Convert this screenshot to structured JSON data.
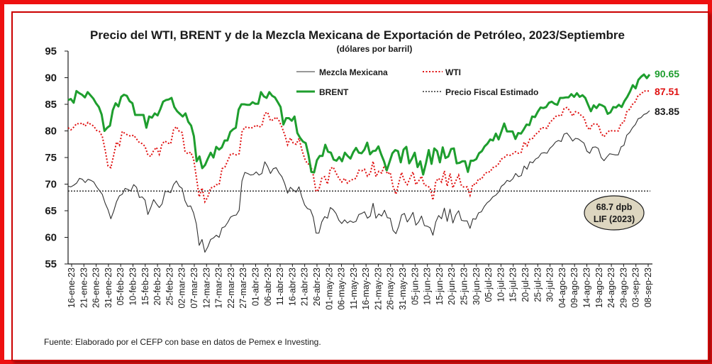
{
  "chart_data": {
    "type": "line",
    "title": "Precio del WTI, BRENT y de la Mezcla Mexicana de Exportación de Petróleo, 2023/Septiembre",
    "subtitle": "(dólares por barril)",
    "source": "Fuente: Elaborado por el CEFP con base en datos de Pemex e Investing.",
    "ylim": [
      55,
      95
    ],
    "yticks": [
      55,
      60,
      65,
      70,
      75,
      80,
      85,
      90,
      95
    ],
    "grid": false,
    "legend_position": "top-center",
    "x_labels": [
      "16-ene-23",
      "21-ene-23",
      "26-ene-23",
      "31-ene-23",
      "05-feb-23",
      "10-feb-23",
      "15-feb-23",
      "20-feb-23",
      "25-feb-23",
      "02-mar-23",
      "07-mar-23",
      "12-mar-23",
      "17-mar-23",
      "22-mar-23",
      "27-mar-23",
      "01-abr-23",
      "06-abr-23",
      "11-abr-23",
      "16-abr-23",
      "21-abr-23",
      "26-abr-23",
      "01-may-23",
      "06-may-23",
      "11-may-23",
      "16-may-23",
      "21-may-23",
      "26-may-23",
      "31-may-23",
      "05-jun-23",
      "10-jun-23",
      "15-jun-23",
      "20-jun-23",
      "25-jun-23",
      "30-jun-23",
      "05-jul-23",
      "10-jul-23",
      "15-jul-23",
      "20-jul-23",
      "25-jul-23",
      "30-jul-23",
      "04-ago-23",
      "09-ago-23",
      "14-ago-23",
      "19-ago-23",
      "24-ago-23",
      "29-ago-23",
      "03-sep-23",
      "08-sep-23"
    ],
    "series": [
      {
        "name": "BRENT",
        "color": "#1e9e2e",
        "style": "solid-thick",
        "end_label": "90.65",
        "values": [
          85.8,
          86.0,
          85.3,
          87.5,
          87.1,
          86.8,
          86.3,
          87.3,
          86.7,
          86.1,
          85.2,
          84.5,
          83.1,
          80.0,
          80.6,
          81.0,
          83.9,
          85.2,
          84.6,
          86.4,
          86.8,
          86.6,
          85.6,
          85.2,
          83.0,
          83.0,
          83.0,
          83.0,
          80.6,
          82.7,
          82.5,
          83.3,
          82.9,
          84.1,
          85.5,
          85.8,
          85.9,
          86.2,
          84.5,
          83.7,
          83.2,
          82.7,
          83.3,
          81.7,
          81.0,
          79.0,
          74.3,
          75.2,
          73.0,
          73.6,
          74.8,
          75.9,
          75.0,
          77.0,
          76.5,
          76.9,
          78.2,
          78.2,
          79.8,
          80.3,
          80.6,
          84.0,
          85.0,
          85.0,
          84.9,
          84.9,
          85.4,
          85.1,
          85.1,
          87.3,
          86.5,
          86.2,
          87.3,
          86.6,
          86.3,
          85.4,
          84.5,
          81.2,
          82.4,
          82.4,
          81.9,
          82.7,
          79.6,
          78.7,
          78.0,
          77.7,
          75.5,
          72.3,
          72.2,
          74.5,
          75.3,
          75.3,
          77.4,
          76.1,
          75.9,
          74.6,
          74.4,
          75.1,
          74.3,
          75.9,
          75.3,
          74.8,
          76.0,
          76.8,
          75.9,
          75.8,
          76.5,
          77.8,
          75.6,
          76.2,
          76.3,
          77.1,
          75.6,
          74.3,
          72.6,
          74.2,
          75.8,
          76.4,
          76.2,
          74.1,
          76.5,
          77.0,
          73.9,
          74.8,
          75.9,
          73.2,
          74.3,
          71.8,
          73.9,
          76.4,
          73.8,
          76.7,
          76.2,
          74.1,
          76.9,
          74.9,
          75.2,
          76.6,
          76.7,
          73.9,
          74.0,
          74.3,
          74.3,
          72.3,
          74.4,
          74.4,
          74.7,
          75.8,
          76.2,
          77.1,
          77.6,
          78.4,
          78.2,
          79.5,
          78.4,
          79.9,
          81.4,
          79.9,
          79.9,
          79.9,
          78.5,
          79.6,
          79.5,
          80.3,
          81.2,
          81.1,
          82.7,
          82.6,
          83.6,
          84.4,
          84.3,
          84.5,
          85.3,
          85.5,
          85.1,
          84.9,
          86.2,
          86.2,
          86.3,
          86.3,
          86.9,
          86.4,
          87.1,
          86.4,
          86.7,
          86.2,
          84.9,
          83.7,
          84.8,
          84.3,
          85.0,
          84.8,
          84.5,
          83.2,
          83.5,
          84.5,
          84.4,
          84.9,
          84.5,
          85.6,
          86.4,
          87.4,
          88.6,
          88.0,
          89.6,
          90.2,
          90.6,
          89.9,
          90.6
        ]
      },
      {
        "name": "WTI",
        "color": "#e01010",
        "style": "dotted",
        "end_label": "87.51",
        "values": [
          80.6,
          80.2,
          80.7,
          81.4,
          81.3,
          81.5,
          80.9,
          81.6,
          81.2,
          80.9,
          80.1,
          79.9,
          79.0,
          76.4,
          73.4,
          73.1,
          75.4,
          77.9,
          77.3,
          79.9,
          79.5,
          79.2,
          79.0,
          79.2,
          78.5,
          77.8,
          77.6,
          77.1,
          75.5,
          75.2,
          76.3,
          76.9,
          75.6,
          77.6,
          78.1,
          77.7,
          77.6,
          80.2,
          80.8,
          79.9,
          79.7,
          76.2,
          75.7,
          76.0,
          74.8,
          71.3,
          67.6,
          69.3,
          66.7,
          67.6,
          69.3,
          69.4,
          69.9,
          69.9,
          72.9,
          73.2,
          74.4,
          75.6,
          75.7,
          75.5,
          75.7,
          79.8,
          80.7,
          80.7,
          80.5,
          80.7,
          81.1,
          80.7,
          81.0,
          83.3,
          83.5,
          81.9,
          82.1,
          82.6,
          81.9,
          80.7,
          79.3,
          77.4,
          78.7,
          77.7,
          77.5,
          78.6,
          76.5,
          74.8,
          73.8,
          73.7,
          71.7,
          68.6,
          69.0,
          71.1,
          71.4,
          70.0,
          72.9,
          73.2,
          72.1,
          71.1,
          70.4,
          71.1,
          70.2,
          70.7,
          70.9,
          71.1,
          72.6,
          72.5,
          72.8,
          71.5,
          72.0,
          74.3,
          71.4,
          72.4,
          72.1,
          73.5,
          71.9,
          72.2,
          69.6,
          68.1,
          70.2,
          72.2,
          70.6,
          69.9,
          71.2,
          72.3,
          69.9,
          70.6,
          71.5,
          69.8,
          69.7,
          69.3,
          67.0,
          70.5,
          71.1,
          70.4,
          72.5,
          69.6,
          72.0,
          69.3,
          70.6,
          71.7,
          69.7,
          69.4,
          69.5,
          67.9,
          70.0,
          69.9,
          71.0,
          70.9,
          71.8,
          72.3,
          72.3,
          73.1,
          73.3,
          73.8,
          74.7,
          75.0,
          75.5,
          75.4,
          75.7,
          76.1,
          75.8,
          76.0,
          77.9,
          77.2,
          78.5,
          78.6,
          79.4,
          79.7,
          80.6,
          80.6,
          80.5,
          81.6,
          82.1,
          82.7,
          82.9,
          82.8,
          84.2,
          84.4,
          83.8,
          82.8,
          83.6,
          83.4,
          82.9,
          82.5,
          80.8,
          80.2,
          81.3,
          81.3,
          81.2,
          79.5,
          78.9,
          79.6,
          80.1,
          80.0,
          80.0,
          80.0,
          81.4,
          81.6,
          83.6,
          84.1,
          85.0,
          85.5,
          86.7,
          86.9,
          87.5,
          87.5,
          87.5
        ]
      },
      {
        "name": "Mezcla Mexicana",
        "color": "#303030",
        "style": "solid-thin",
        "end_label": "83.85",
        "values": [
          69.6,
          69.5,
          69.8,
          70.2,
          71.1,
          70.9,
          70.3,
          70.9,
          70.7,
          70.4,
          69.5,
          68.8,
          68.1,
          66.4,
          65.2,
          63.5,
          64.9,
          66.7,
          67.8,
          68.1,
          69.2,
          69.0,
          68.7,
          69.9,
          69.4,
          67.5,
          67.6,
          67.0,
          64.3,
          65.6,
          67.1,
          66.3,
          65.6,
          66.3,
          68.6,
          68.6,
          68.4,
          69.9,
          70.6,
          69.6,
          69.2,
          66.9,
          65.8,
          65.9,
          64.6,
          62.5,
          58.5,
          59.6,
          57.2,
          58.2,
          59.6,
          59.9,
          60.4,
          60.0,
          61.8,
          62.0,
          62.8,
          63.8,
          64.1,
          64.2,
          65.1,
          70.6,
          72.2,
          72.0,
          71.7,
          71.8,
          72.3,
          71.7,
          72.0,
          74.2,
          73.3,
          72.0,
          72.9,
          73.1,
          72.1,
          71.4,
          70.1,
          68.3,
          69.4,
          68.9,
          68.5,
          69.5,
          67.6,
          66.1,
          65.4,
          65.2,
          63.8,
          60.8,
          60.8,
          62.9,
          63.9,
          63.6,
          65.6,
          65.2,
          64.5,
          63.2,
          62.6,
          63.3,
          62.7,
          63.1,
          62.8,
          63.0,
          64.3,
          64.5,
          64.8,
          63.6,
          64.0,
          66.4,
          63.6,
          64.4,
          64.0,
          65.1,
          63.7,
          63.6,
          61.3,
          60.7,
          62.1,
          64.2,
          64.5,
          62.9,
          63.7,
          64.7,
          62.3,
          62.9,
          64.0,
          62.2,
          62.1,
          61.8,
          60.4,
          62.9,
          64.1,
          63.5,
          65.5,
          63.0,
          65.3,
          62.7,
          64.2,
          65.0,
          63.2,
          63.1,
          63.1,
          61.7,
          63.5,
          63.4,
          64.6,
          64.8,
          65.8,
          66.5,
          66.9,
          67.6,
          67.9,
          68.5,
          69.6,
          70.0,
          70.7,
          70.5,
          71.0,
          72.0,
          71.4,
          71.6,
          73.4,
          72.8,
          74.2,
          74.0,
          74.7,
          75.0,
          75.8,
          75.9,
          75.8,
          76.7,
          77.2,
          77.9,
          78.2,
          78.0,
          79.4,
          79.6,
          78.9,
          78.1,
          78.6,
          78.5,
          78.1,
          77.7,
          76.2,
          75.8,
          76.9,
          77.0,
          76.7,
          75.0,
          74.4,
          75.1,
          75.7,
          75.6,
          75.5,
          75.5,
          77.0,
          77.3,
          79.2,
          79.7,
          80.6,
          81.2,
          82.3,
          82.5,
          83.1,
          83.3,
          83.8
        ]
      },
      {
        "name": "Precio Fiscal Estimado",
        "color": "#303030",
        "style": "dotted-reference",
        "value": 68.7
      }
    ],
    "annotation": {
      "line1": "68.7 dpb",
      "line2": "LIF (2023)",
      "fill": "#ddd6c0"
    }
  }
}
